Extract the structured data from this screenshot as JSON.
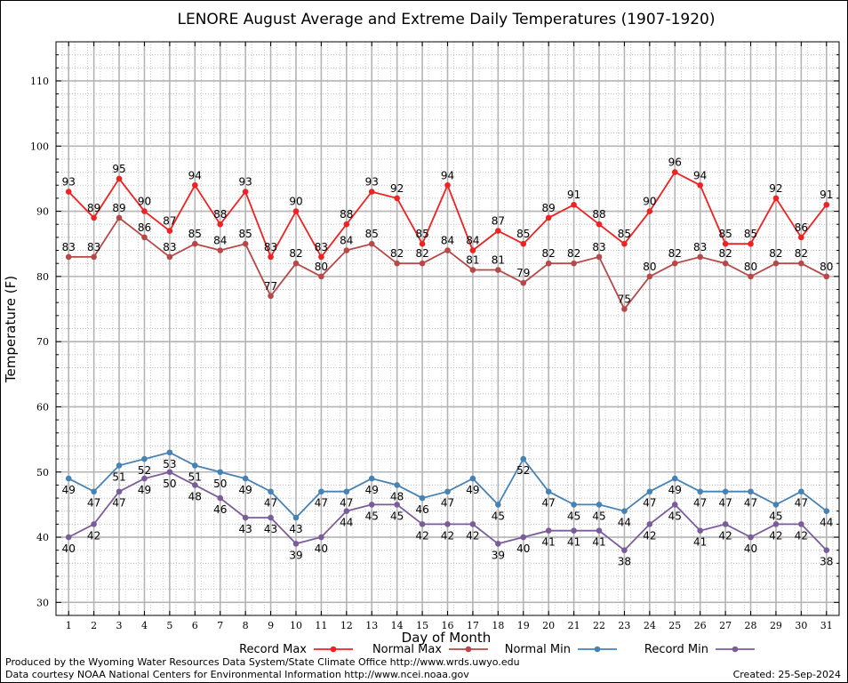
{
  "chart_data": {
    "type": "line",
    "title": "LENORE August Average and Extreme Daily Temperatures (1907-1920)",
    "xlabel": "Day of Month",
    "ylabel": "Temperature (F)",
    "xlim": [
      0.5,
      31.5
    ],
    "ylim": [
      28,
      116
    ],
    "yticks": [
      30,
      40,
      50,
      60,
      70,
      80,
      90,
      100,
      110
    ],
    "x": [
      1,
      2,
      3,
      4,
      5,
      6,
      7,
      8,
      9,
      10,
      11,
      12,
      13,
      14,
      15,
      16,
      17,
      18,
      19,
      20,
      21,
      22,
      23,
      24,
      25,
      26,
      27,
      28,
      29,
      30,
      31
    ],
    "grid": true,
    "legend_placement": "bottom",
    "series": [
      {
        "name": "Record Max",
        "color": "#ee2222",
        "label_pos": "above",
        "values": [
          93,
          89,
          95,
          90,
          87,
          94,
          88,
          93,
          83,
          90,
          83,
          88,
          93,
          92,
          85,
          94,
          84,
          87,
          85,
          89,
          91,
          88,
          85,
          90,
          96,
          94,
          85,
          85,
          92,
          86,
          91
        ]
      },
      {
        "name": "Normal Max",
        "color": "#b84848",
        "label_pos": "above",
        "values": [
          83,
          83,
          89,
          86,
          83,
          85,
          84,
          85,
          77,
          82,
          80,
          84,
          85,
          82,
          82,
          84,
          81,
          81,
          79,
          82,
          82,
          83,
          75,
          80,
          82,
          83,
          82,
          80,
          82,
          82,
          80
        ]
      },
      {
        "name": "Normal Min",
        "color": "#4682b4",
        "label_pos": "below",
        "values": [
          49,
          47,
          51,
          52,
          53,
          51,
          50,
          49,
          47,
          43,
          47,
          47,
          49,
          48,
          46,
          47,
          49,
          45,
          52,
          47,
          45,
          45,
          44,
          47,
          49,
          47,
          47,
          47,
          45,
          47,
          44
        ]
      },
      {
        "name": "Record Min",
        "color": "#7b5c9b",
        "label_pos": "below",
        "values": [
          40,
          42,
          47,
          49,
          50,
          48,
          46,
          43,
          43,
          39,
          40,
          44,
          45,
          45,
          42,
          42,
          42,
          39,
          40,
          41,
          41,
          41,
          38,
          42,
          45,
          41,
          42,
          40,
          42,
          42,
          38
        ]
      }
    ]
  },
  "footer": {
    "produced_by": "Produced by the Wyoming Water Resources Data System/State Climate Office http://www.wrds.uwyo.edu",
    "courtesy": "Data courtesy NOAA National Centers for Environmental Information http://www.ncei.noaa.gov",
    "created": "Created:  25-Sep-2024"
  }
}
